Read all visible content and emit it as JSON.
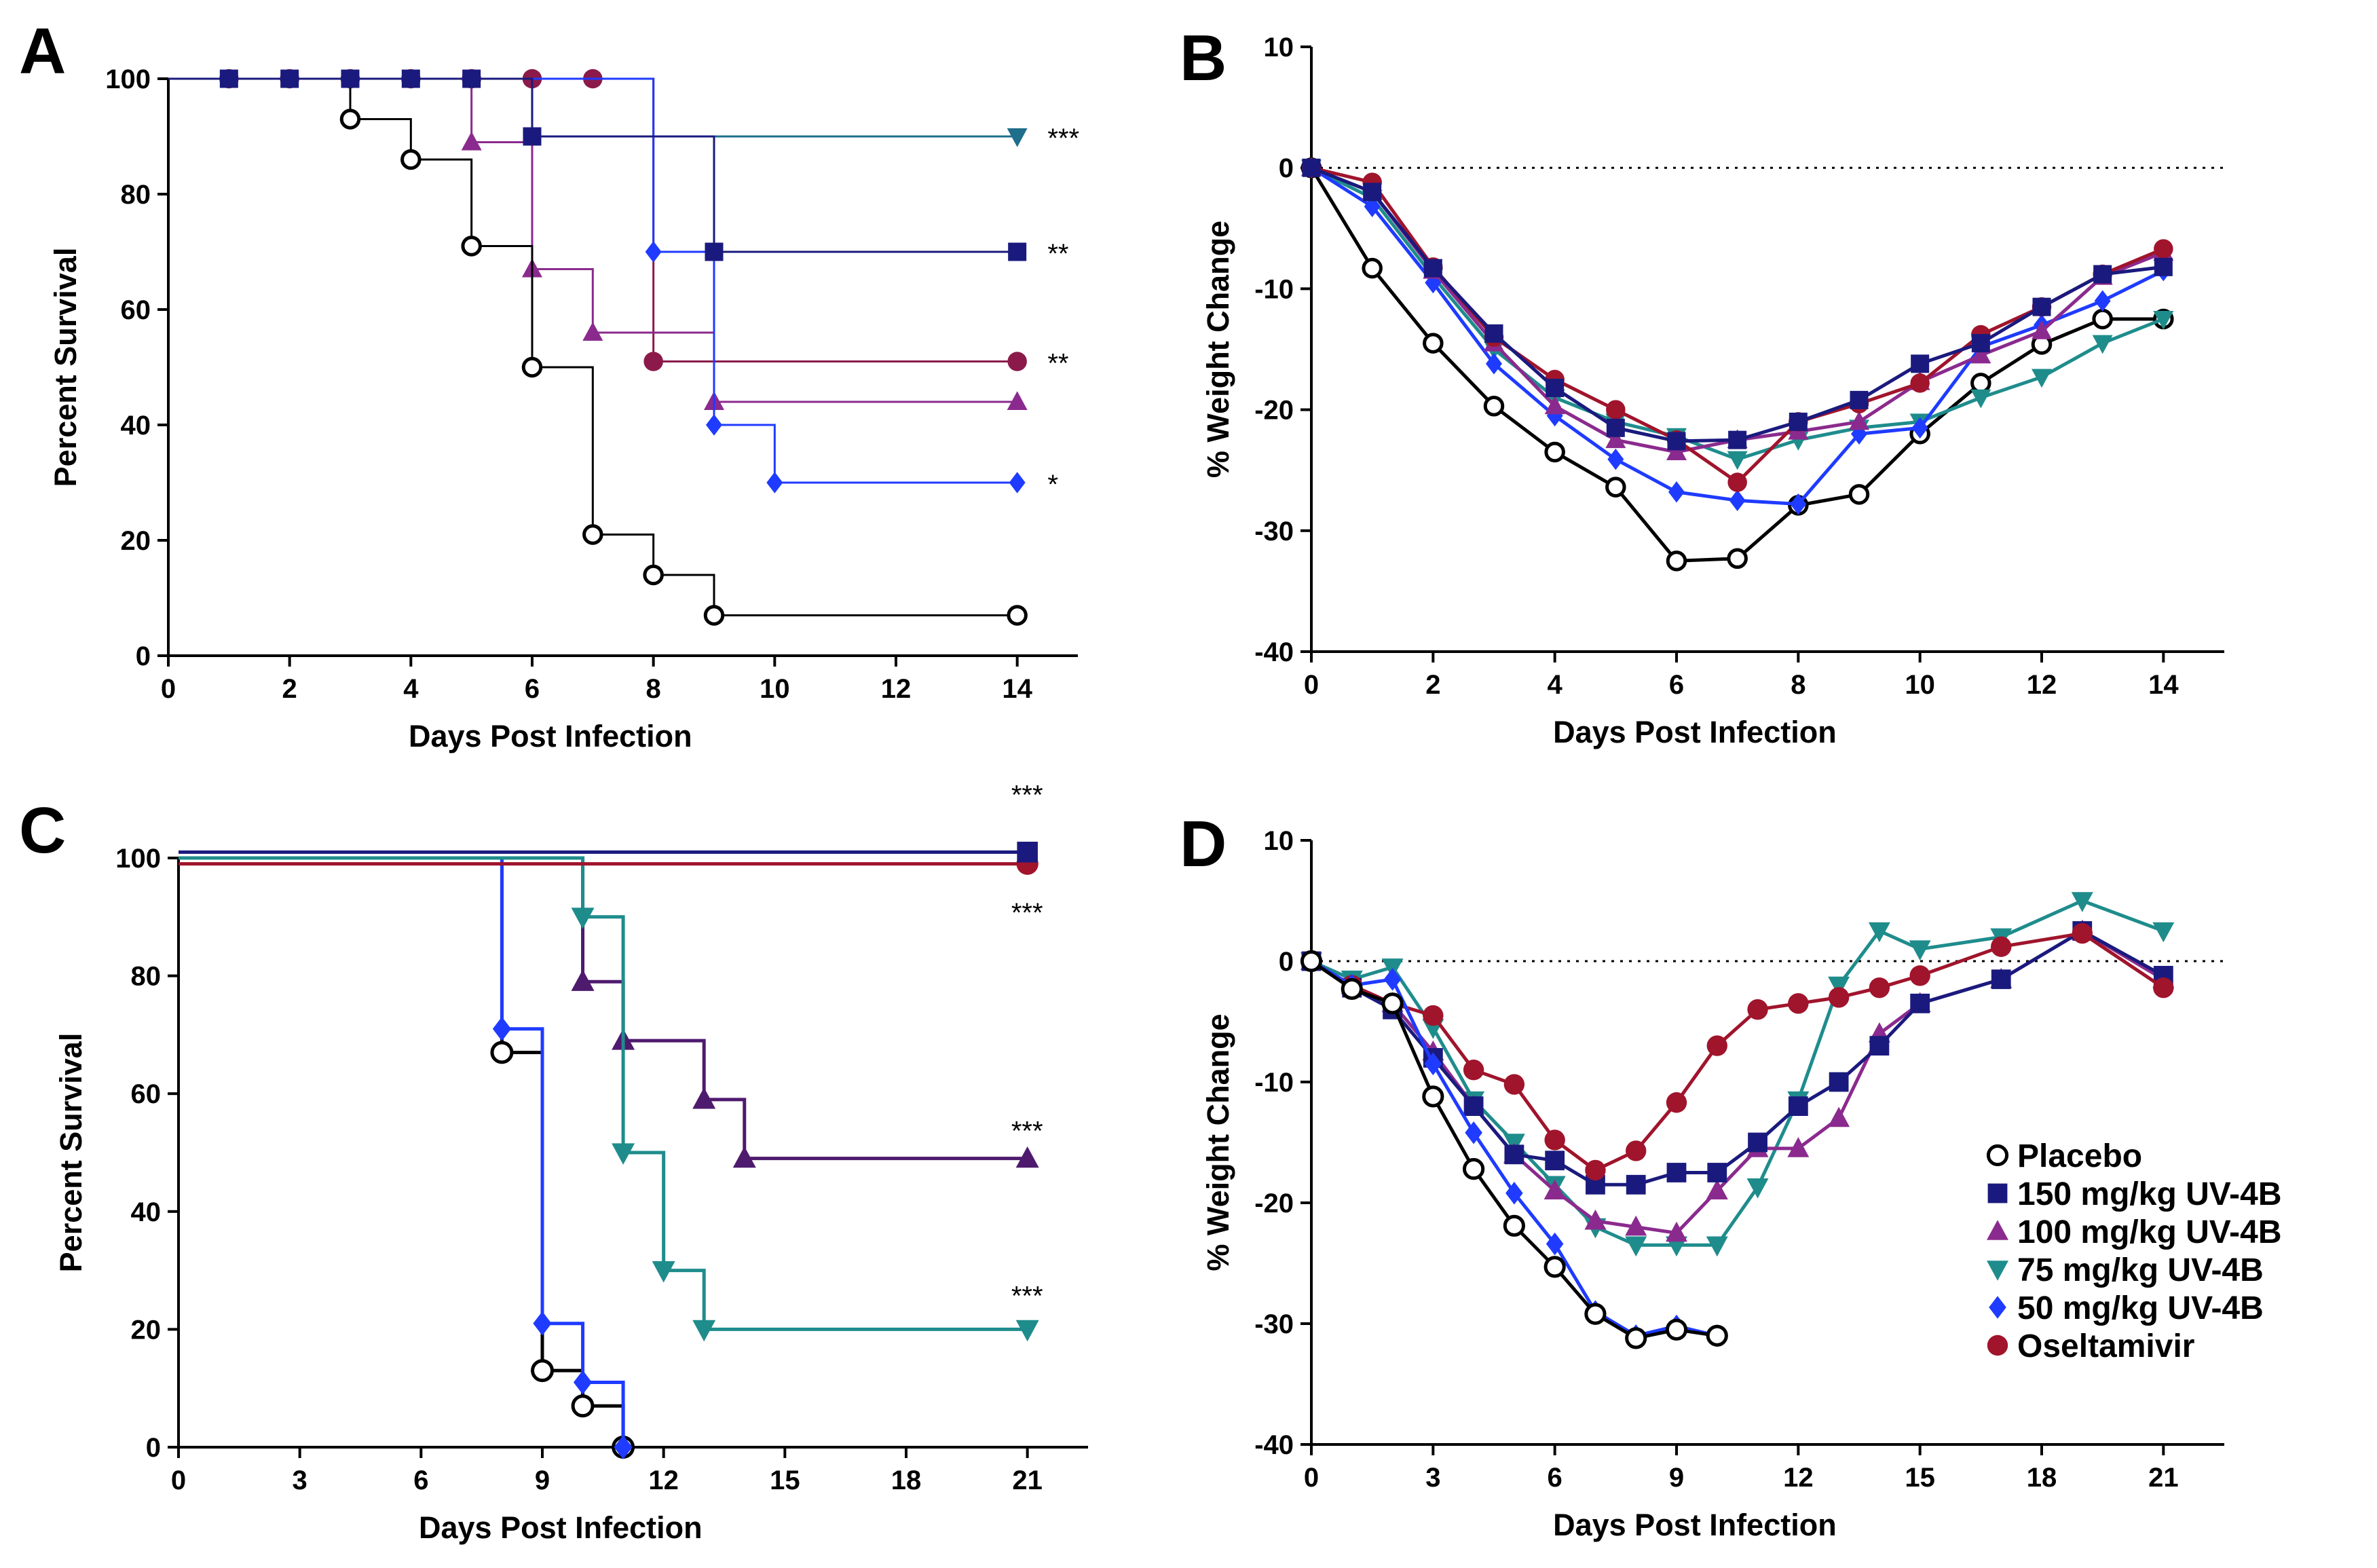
{
  "figure": {
    "legend": [
      {
        "label": "Placebo",
        "color": "#000000",
        "marker": "circle-open"
      },
      {
        "label": "150 mg/kg UV-4B",
        "color": "#1a1a7e",
        "marker": "square"
      },
      {
        "label": "100 mg/kg UV-4B",
        "color": "#8b2a8e",
        "marker": "triangle-up"
      },
      {
        "label": "75 mg/kg  UV-4B",
        "color": "#1f8c8c",
        "marker": "triangle-down"
      },
      {
        "label": "50 mg/kg  UV-4B",
        "color": "#1f3bff",
        "marker": "diamond"
      },
      {
        "label": "Oseltamivir",
        "color": "#a0142c",
        "marker": "circle"
      }
    ]
  },
  "chart_data": [
    {
      "panel": "A",
      "type": "line",
      "step": true,
      "xlabel": "Days Post Infection",
      "ylabel": "Percent Survival",
      "xlim": [
        0,
        15
      ],
      "ylim": [
        0,
        100
      ],
      "xticks": [
        0,
        2,
        4,
        6,
        8,
        10,
        12,
        14
      ],
      "yticks": [
        0,
        20,
        40,
        60,
        80,
        100
      ],
      "series": [
        {
          "name": "Oseltamivir",
          "color": "#8b1a4a",
          "marker": "circle",
          "lw": 3,
          "x": [
            0,
            1,
            2,
            3,
            4,
            5,
            6,
            7,
            8,
            14
          ],
          "y": [
            100,
            100,
            100,
            100,
            100,
            100,
            100,
            100,
            51,
            51
          ],
          "markers_x": [
            1,
            2,
            3,
            4,
            5,
            6,
            7,
            8,
            14
          ],
          "markers_y": [
            100,
            100,
            100,
            100,
            100,
            100,
            100,
            51,
            51
          ]
        },
        {
          "name": "100 mg/kg UV-4B",
          "color": "#8b2a8e",
          "marker": "triangle-up",
          "lw": 3,
          "x": [
            0,
            5,
            6,
            7,
            9,
            14
          ],
          "y": [
            100,
            89,
            67,
            56,
            44,
            44
          ],
          "markers_x": [
            5,
            6,
            7,
            9,
            14
          ],
          "markers_y": [
            89,
            67,
            56,
            44,
            44
          ]
        },
        {
          "name": "Placebo",
          "color": "#000000",
          "marker": "circle-open",
          "lw": 3,
          "x": [
            0,
            3,
            4,
            5,
            6,
            7,
            8,
            9,
            14
          ],
          "y": [
            100,
            93,
            86,
            71,
            50,
            21,
            14,
            7,
            7
          ],
          "markers_x": [
            3,
            4,
            5,
            6,
            7,
            8,
            9,
            14
          ],
          "markers_y": [
            93,
            86,
            71,
            50,
            21,
            14,
            7,
            7
          ]
        },
        {
          "name": "50 mg/kg UV-4B",
          "color": "#1f3bff",
          "marker": "diamond",
          "lw": 3,
          "x": [
            0,
            8,
            9,
            10,
            14
          ],
          "y": [
            100,
            70,
            40,
            30,
            30
          ],
          "markers_x": [
            8,
            9,
            10,
            14
          ],
          "markers_y": [
            70,
            40,
            30,
            30
          ]
        },
        {
          "name": "75 mg/kg UV-4B",
          "color": "#1f6e8c",
          "marker": "triangle-down",
          "lw": 3,
          "x": [
            0,
            6,
            14
          ],
          "y": [
            100,
            90,
            90
          ],
          "markers_x": [
            14
          ],
          "markers_y": [
            90
          ]
        },
        {
          "name": "150 mg/kg UV-4B",
          "color": "#1a1a7e",
          "marker": "square",
          "lw": 3,
          "x": [
            0,
            6,
            9,
            14
          ],
          "y": [
            100,
            90,
            70,
            70
          ],
          "markers_x": [
            1,
            2,
            3,
            4,
            5,
            6,
            9,
            14
          ],
          "markers_y": [
            100,
            100,
            100,
            100,
            100,
            90,
            70,
            70
          ]
        }
      ],
      "annotations": [
        {
          "x": 14.5,
          "y": 90,
          "text": "***"
        },
        {
          "x": 14.5,
          "y": 70,
          "text": "**"
        },
        {
          "x": 14.5,
          "y": 51,
          "text": "**"
        },
        {
          "x": 14.5,
          "y": 30,
          "text": "*"
        }
      ]
    },
    {
      "panel": "B",
      "type": "line",
      "xlabel": "Days Post Infection",
      "ylabel": "% Weight Change",
      "xlim": [
        0,
        15
      ],
      "ylim": [
        -40,
        10
      ],
      "xticks": [
        0,
        2,
        4,
        6,
        8,
        10,
        12,
        14
      ],
      "yticks": [
        -40,
        -30,
        -20,
        -10,
        0,
        10
      ],
      "reference_line": 0,
      "series": [
        {
          "name": "Placebo",
          "color": "#000000",
          "marker": "circle-open",
          "x": [
            0,
            1,
            2,
            3,
            4,
            5,
            6,
            7,
            8,
            9,
            10,
            11,
            12,
            13,
            14
          ],
          "y": [
            0,
            -8.3,
            -14.5,
            -19.7,
            -23.5,
            -26.4,
            -32.5,
            -32.3,
            -27.9,
            -27.0,
            -22.0,
            -17.8,
            -14.6,
            -12.5,
            -12.5
          ]
        },
        {
          "name": "75 mg/kg UV-4B",
          "color": "#1f8c8c",
          "marker": "triangle-down",
          "x": [
            0,
            1,
            2,
            3,
            4,
            5,
            6,
            7,
            8,
            9,
            10,
            11,
            12,
            13,
            14
          ],
          "y": [
            0,
            -2.5,
            -9.0,
            -15.0,
            -19.0,
            -21.0,
            -22.2,
            -24.1,
            -22.5,
            -21.5,
            -21.0,
            -19.0,
            -17.3,
            -14.5,
            -12.5
          ]
        },
        {
          "name": "50 mg/kg UV-4B",
          "color": "#1f3bff",
          "marker": "diamond",
          "x": [
            0,
            1,
            2,
            3,
            4,
            5,
            6,
            7,
            8,
            9,
            10,
            11,
            12,
            13,
            14
          ],
          "y": [
            0,
            -3.2,
            -9.5,
            -16.2,
            -20.5,
            -24.1,
            -26.8,
            -27.5,
            -27.8,
            -22.0,
            -21.5,
            -14.8,
            -13.0,
            -11.0,
            -8.5
          ]
        },
        {
          "name": "100 mg/kg UV-4B",
          "color": "#8b2a8e",
          "marker": "triangle-up",
          "x": [
            0,
            1,
            2,
            3,
            4,
            5,
            6,
            7,
            8,
            9,
            10,
            11,
            12,
            13,
            14
          ],
          "y": [
            0,
            -2.0,
            -8.5,
            -14.5,
            -19.7,
            -22.5,
            -23.5,
            -22.5,
            -21.8,
            -21.0,
            -17.7,
            -15.5,
            -13.5,
            -9.0,
            -7.0
          ]
        },
        {
          "name": "Oseltamivir",
          "color": "#a0142c",
          "marker": "circle",
          "x": [
            0,
            1,
            2,
            3,
            4,
            5,
            6,
            7,
            8,
            9,
            10,
            11,
            12,
            13,
            14
          ],
          "y": [
            0,
            -1.2,
            -8.2,
            -14.0,
            -17.5,
            -20.0,
            -22.5,
            -26.0,
            -21.0,
            -19.5,
            -17.8,
            -13.8,
            -11.5,
            -8.8,
            -6.7
          ]
        },
        {
          "name": "150 mg/kg UV-4B",
          "color": "#1a1a7e",
          "marker": "square",
          "x": [
            0,
            1,
            2,
            3,
            4,
            5,
            6,
            7,
            8,
            9,
            10,
            11,
            12,
            13,
            14
          ],
          "y": [
            0,
            -2.0,
            -8.3,
            -13.7,
            -18.2,
            -21.5,
            -22.6,
            -22.5,
            -21.0,
            -19.2,
            -16.2,
            -14.5,
            -11.5,
            -8.8,
            -8.2
          ]
        }
      ]
    },
    {
      "panel": "C",
      "type": "line",
      "step": true,
      "xlabel": "Days Post Infection",
      "ylabel": "Percent Survival",
      "xlim": [
        0,
        22.5
      ],
      "ylim": [
        0,
        100
      ],
      "xticks": [
        0,
        3,
        6,
        9,
        12,
        15,
        18,
        21
      ],
      "yticks": [
        0,
        20,
        40,
        60,
        80,
        100
      ],
      "series": [
        {
          "name": "Placebo",
          "color": "#000000",
          "marker": "circle-open",
          "lw": 5,
          "x": [
            0,
            8,
            9,
            10,
            11
          ],
          "y": [
            100,
            67,
            13,
            7,
            0
          ],
          "markers_x": [
            8,
            9,
            10,
            11
          ],
          "markers_y": [
            67,
            13,
            7,
            0
          ]
        },
        {
          "name": "50 mg/kg UV-4B",
          "color": "#1f3bff",
          "marker": "diamond",
          "lw": 5,
          "x": [
            0,
            8,
            9,
            10,
            11
          ],
          "y": [
            100,
            71,
            21,
            11,
            0
          ],
          "markers_x": [
            8,
            9,
            10,
            11
          ],
          "markers_y": [
            71,
            21,
            11,
            0
          ]
        },
        {
          "name": "100 mg/kg UV-4B",
          "color": "#4e1a6e",
          "marker": "triangle-up",
          "lw": 5,
          "x": [
            0,
            10,
            11,
            13,
            14,
            21
          ],
          "y": [
            100,
            79,
            69,
            59,
            49,
            49
          ],
          "markers_x": [
            10,
            11,
            13,
            14,
            21
          ],
          "markers_y": [
            79,
            69,
            59,
            49,
            49
          ]
        },
        {
          "name": "75 mg/kg UV-4B",
          "color": "#1f8c8c",
          "marker": "triangle-down",
          "lw": 5,
          "x": [
            0,
            10,
            11,
            12,
            13,
            21
          ],
          "y": [
            100,
            90,
            50,
            30,
            20,
            20
          ],
          "markers_x": [
            10,
            11,
            12,
            13,
            21
          ],
          "markers_y": [
            90,
            50,
            30,
            20,
            20
          ]
        },
        {
          "name": "Oseltamivir",
          "color": "#a0142c",
          "marker": "circle",
          "lw": 5,
          "x": [
            0,
            21
          ],
          "y": [
            99,
            99
          ],
          "markers_x": [
            21
          ],
          "markers_y": [
            99
          ]
        },
        {
          "name": "150 mg/kg UV-4B",
          "color": "#1a1a7e",
          "marker": "square",
          "lw": 5,
          "x": [
            0,
            21
          ],
          "y": [
            101,
            101
          ],
          "markers_x": [
            21
          ],
          "markers_y": [
            101
          ]
        }
      ],
      "annotations": [
        {
          "x": 20.6,
          "y": 111,
          "text": "***"
        },
        {
          "x": 20.6,
          "y": 91,
          "text": "***"
        },
        {
          "x": 20.6,
          "y": 54,
          "text": "***"
        },
        {
          "x": 20.6,
          "y": 26,
          "text": "***"
        }
      ]
    },
    {
      "panel": "D",
      "type": "line",
      "xlabel": "Days Post Infection",
      "ylabel": "% Weight Change",
      "xlim": [
        0,
        22.5
      ],
      "ylim": [
        -40,
        10
      ],
      "xticks": [
        0,
        3,
        6,
        9,
        12,
        15,
        18,
        21
      ],
      "yticks": [
        -40,
        -30,
        -20,
        -10,
        0,
        10
      ],
      "reference_line": 0,
      "series": [
        {
          "name": "75 mg/kg UV-4B",
          "color": "#1f8c8c",
          "marker": "triangle-down",
          "x": [
            0,
            1,
            2,
            3,
            4,
            5,
            6,
            7,
            8,
            9,
            10,
            11,
            12,
            13,
            14,
            15,
            17,
            19,
            21
          ],
          "y": [
            0,
            -1.5,
            -0.5,
            -5.5,
            -11.5,
            -15.0,
            -18.5,
            -22.0,
            -23.5,
            -23.5,
            -23.5,
            -18.7,
            -11.5,
            -2.0,
            2.5,
            1.0,
            2.0,
            5.0,
            2.5
          ]
        },
        {
          "name": "100 mg/kg UV-4B",
          "color": "#8b2a8e",
          "marker": "triangle-up",
          "x": [
            0,
            1,
            2,
            3,
            4,
            5,
            6,
            7,
            8,
            9,
            10,
            11,
            12,
            13,
            14,
            15,
            17,
            19,
            21
          ],
          "y": [
            0,
            -2.0,
            -3.5,
            -7.5,
            -12.0,
            -16.0,
            -19.0,
            -21.5,
            -22.0,
            -22.5,
            -19.0,
            -15.5,
            -15.5,
            -13.0,
            -6.0,
            -3.5,
            -1.5,
            2.5,
            -1.5
          ]
        },
        {
          "name": "150 mg/kg UV-4B",
          "color": "#1a1a7e",
          "marker": "square",
          "x": [
            0,
            1,
            2,
            3,
            4,
            5,
            6,
            7,
            8,
            9,
            10,
            11,
            12,
            13,
            14,
            15,
            17,
            19,
            21
          ],
          "y": [
            0,
            -2.2,
            -4.0,
            -8.0,
            -12.0,
            -16.0,
            -16.5,
            -18.5,
            -18.5,
            -17.5,
            -17.5,
            -15.0,
            -12.0,
            -10.0,
            -7.0,
            -3.5,
            -1.5,
            2.5,
            -1.2
          ]
        },
        {
          "name": "Oseltamivir",
          "color": "#a0142c",
          "marker": "circle",
          "x": [
            0,
            1,
            2,
            3,
            4,
            5,
            6,
            7,
            8,
            9,
            10,
            11,
            12,
            13,
            14,
            15,
            17,
            19,
            21
          ],
          "y": [
            0,
            -2.0,
            -3.5,
            -4.5,
            -9.0,
            -10.2,
            -14.8,
            -17.3,
            -15.7,
            -11.7,
            -7.0,
            -4.0,
            -3.5,
            -3.0,
            -2.2,
            -1.2,
            1.2,
            2.3,
            -2.2
          ]
        },
        {
          "name": "50 mg/kg UV-4B",
          "color": "#1f3bff",
          "marker": "diamond",
          "x": [
            0,
            1,
            2,
            3,
            4,
            5,
            6,
            7,
            8,
            9,
            10
          ],
          "y": [
            0,
            -2.0,
            -1.5,
            -8.5,
            -14.2,
            -19.2,
            -23.4,
            -29.0,
            -31.0,
            -30.2,
            -31.0
          ]
        },
        {
          "name": "Placebo",
          "color": "#000000",
          "marker": "circle-open",
          "x": [
            0,
            1,
            2,
            3,
            4,
            5,
            6,
            7,
            8,
            9,
            10
          ],
          "y": [
            0,
            -2.3,
            -3.5,
            -11.2,
            -17.2,
            -21.9,
            -25.3,
            -29.2,
            -31.2,
            -30.5,
            -31.0
          ]
        }
      ]
    }
  ]
}
